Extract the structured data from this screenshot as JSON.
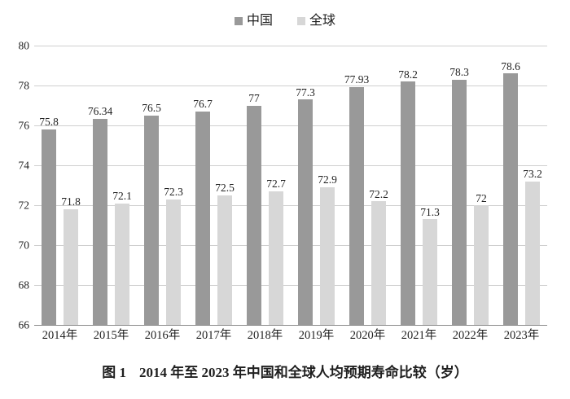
{
  "legend": {
    "position": "top-center"
  },
  "caption": {
    "figure_label": "图 1",
    "text": "2014 年至 2023 年中国和全球人均预期寿命比较（岁）"
  },
  "colors": {
    "china_bar": "#999999",
    "global_bar": "#d7d7d7",
    "gridline": "#cfcfcf",
    "axis_line": "#8a8a8a",
    "text": "#1f1f1f"
  },
  "chart_data": {
    "type": "bar",
    "title": "图 1 2014 年至 2023 年中国和全球人均预期寿命比较（岁）",
    "xlabel": "",
    "ylabel": "",
    "categories": [
      "2014年",
      "2015年",
      "2016年",
      "2017年",
      "2018年",
      "2019年",
      "2020年",
      "2021年",
      "2022年",
      "2023年"
    ],
    "series": [
      {
        "name": "中国",
        "color": "#999999",
        "values": [
          75.8,
          76.34,
          76.5,
          76.7,
          77,
          77.3,
          77.93,
          78.2,
          78.3,
          78.6
        ]
      },
      {
        "name": "全球",
        "color": "#d7d7d7",
        "values": [
          71.8,
          72.1,
          72.3,
          72.5,
          72.7,
          72.9,
          72.2,
          71.3,
          72,
          73.2
        ]
      }
    ],
    "ylim": [
      66,
      80
    ],
    "yticks": [
      66,
      68,
      70,
      72,
      74,
      76,
      78,
      80
    ],
    "grid": true,
    "value_labels": true,
    "legend_position": "top-center"
  }
}
